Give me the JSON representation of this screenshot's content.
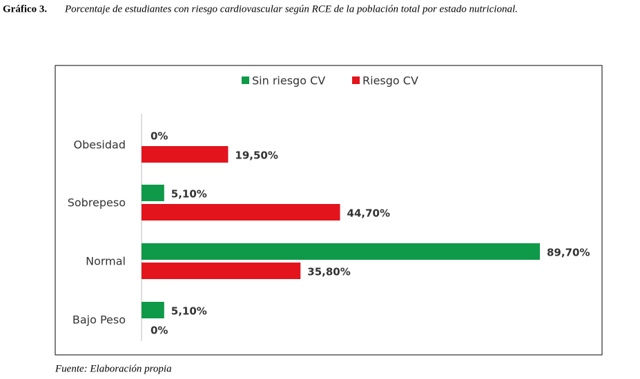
{
  "chart_data": {
    "type": "barh",
    "figure_label": "Gráfico 3.",
    "title": "Porcentaje de estudiantes con riesgo cardiovascular según RCE de la población total por estado nutricional.",
    "source": "Fuente: Elaboración propia",
    "categories": [
      "Obesidad",
      "Sobrepeso",
      "Normal",
      "Bajo Peso"
    ],
    "series": [
      {
        "name": "Sin riesgo CV",
        "color": "#0e9a48",
        "values": [
          0,
          5.1,
          89.7,
          5.1
        ],
        "value_labels": [
          "0%",
          "5,10%",
          "89,70%",
          "5,10%"
        ]
      },
      {
        "name": "Riesgo CV",
        "color": "#e3141c",
        "values": [
          19.5,
          44.7,
          35.8,
          0
        ],
        "value_labels": [
          "19,50%",
          "44,70%",
          "35,80%",
          "0%"
        ]
      }
    ],
    "legend": "top"
  }
}
